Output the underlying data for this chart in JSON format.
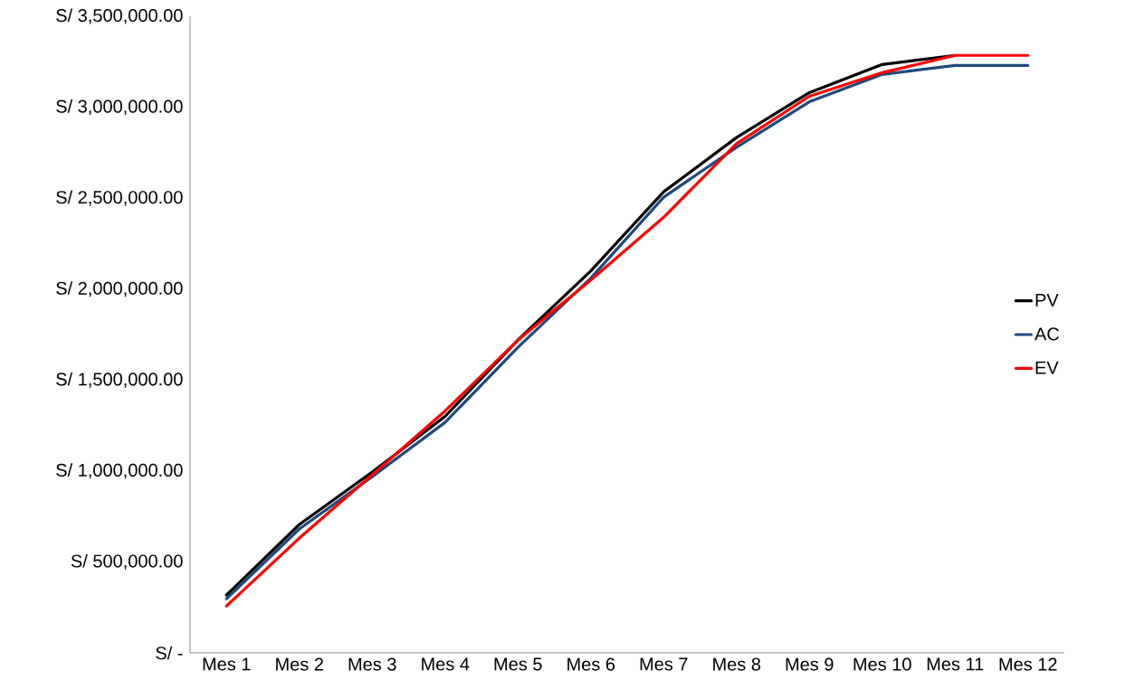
{
  "chart_data": {
    "type": "line",
    "categories": [
      "Mes 1",
      "Mes 2",
      "Mes 3",
      "Mes 4",
      "Mes 5",
      "Mes 6",
      "Mes 7",
      "Mes 8",
      "Mes 9",
      "Mes 10",
      "Mes 11",
      "Mes 12"
    ],
    "series": [
      {
        "name": "PV",
        "color": "#000000",
        "values": [
          318000,
          706000,
          994000,
          1300000,
          1720000,
          2100000,
          2535000,
          2833000,
          3080000,
          3235000,
          3285000,
          null
        ]
      },
      {
        "name": "AC",
        "color": "#1f497d",
        "values": [
          298000,
          681000,
          969000,
          1267000,
          1680000,
          2060000,
          2505000,
          2780000,
          3030000,
          3180000,
          3230000,
          3230000
        ]
      },
      {
        "name": "EV",
        "color": "#ff0000",
        "values": [
          258000,
          631000,
          979000,
          1330000,
          1720000,
          2050000,
          2395000,
          2800000,
          3060000,
          3190000,
          3285000,
          3285000
        ]
      }
    ],
    "ylim": [
      0,
      3500000
    ],
    "yticks": [
      {
        "value": 0,
        "label": "S/ -"
      },
      {
        "value": 500000,
        "label": "S/ 500,000.00"
      },
      {
        "value": 1000000,
        "label": "S/ 1,000,000.00"
      },
      {
        "value": 1500000,
        "label": "S/ 1,500,000.00"
      },
      {
        "value": 2000000,
        "label": "S/ 2,000,000.00"
      },
      {
        "value": 2500000,
        "label": "S/ 2,500,000.00"
      },
      {
        "value": 3000000,
        "label": "S/ 3,000,000.00"
      },
      {
        "value": 3500000,
        "label": "S/ 3,500,000.00"
      }
    ],
    "grid": false,
    "legend": "right",
    "marker": "none",
    "line_style": "solid"
  }
}
